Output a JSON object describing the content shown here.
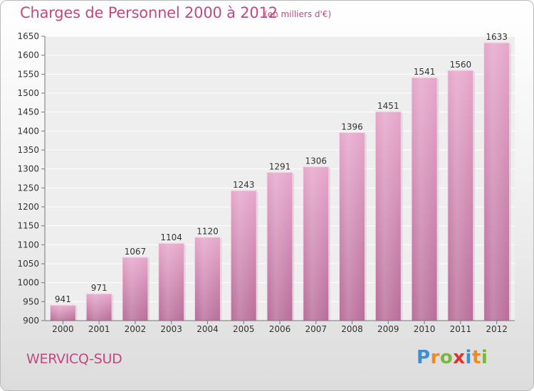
{
  "chart_data": {
    "type": "bar",
    "title": "Charges de Personnel 2000 à 2012",
    "subtitle": "(en milliers d'€)",
    "categories": [
      "2000",
      "2001",
      "2002",
      "2003",
      "2004",
      "2005",
      "2006",
      "2007",
      "2008",
      "2009",
      "2010",
      "2011",
      "2012"
    ],
    "values": [
      941,
      971,
      1067,
      1104,
      1120,
      1243,
      1291,
      1306,
      1396,
      1451,
      1541,
      1560,
      1633
    ],
    "ylim": [
      900,
      1650
    ],
    "yticks": [
      900,
      950,
      1000,
      1050,
      1100,
      1150,
      1200,
      1250,
      1300,
      1350,
      1400,
      1450,
      1500,
      1550,
      1600,
      1650
    ],
    "grid": true,
    "bar_color": "#d98ab4"
  },
  "footer": {
    "commune": "WERVICQ-SUD",
    "logo": {
      "letters": [
        "P",
        "r",
        "o",
        "x",
        "i",
        "t",
        "i"
      ],
      "colors": [
        "#3a8fd6",
        "#f08a1c",
        "#79b83a",
        "#e2312b",
        "#3a8fd6",
        "#f08a1c",
        "#79b83a"
      ]
    }
  }
}
